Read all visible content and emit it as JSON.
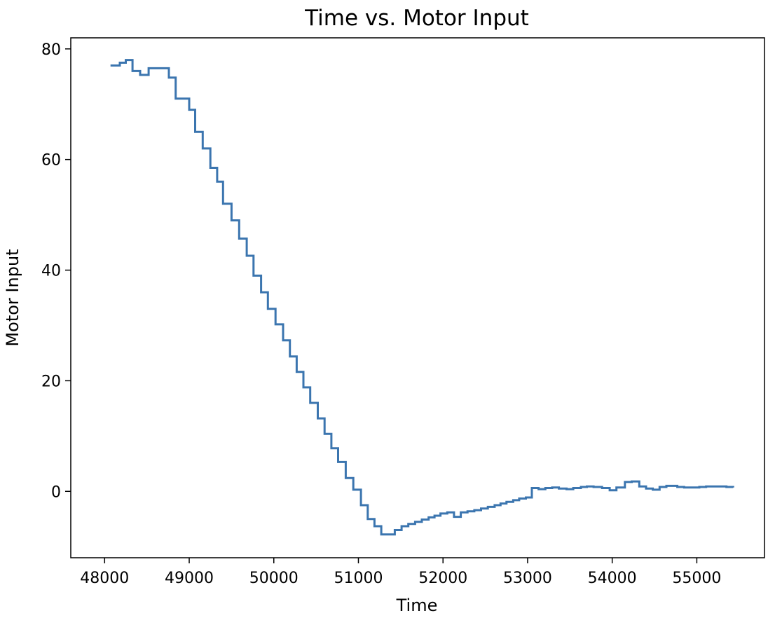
{
  "chart_data": {
    "type": "line",
    "title": "Time vs. Motor Input",
    "xlabel": "Time",
    "ylabel": "Motor Input",
    "xlim": [
      47600,
      55800
    ],
    "ylim": [
      -12,
      82
    ],
    "xticks": [
      48000,
      49000,
      50000,
      51000,
      52000,
      53000,
      54000,
      55000
    ],
    "yticks": [
      0,
      20,
      40,
      60,
      80
    ],
    "grid": false,
    "line_style": "step",
    "series": [
      {
        "color": "#3b75af",
        "x": [
          48070,
          48180,
          48250,
          48330,
          48420,
          48520,
          48630,
          48760,
          48840,
          49000,
          49070,
          49160,
          49250,
          49330,
          49400,
          49500,
          49590,
          49680,
          49760,
          49850,
          49930,
          50020,
          50110,
          50190,
          50270,
          50350,
          50430,
          50520,
          50600,
          50680,
          50760,
          50850,
          50940,
          51030,
          51110,
          51190,
          51270,
          51350,
          51430,
          51510,
          51590,
          51670,
          51750,
          51830,
          51900,
          51970,
          52050,
          52130,
          52210,
          52290,
          52370,
          52450,
          52530,
          52610,
          52680,
          52750,
          52830,
          52900,
          52980,
          53050,
          53130,
          53210,
          53290,
          53370,
          53460,
          53540,
          53630,
          53700,
          53780,
          53880,
          53970,
          54050,
          54150,
          54230,
          54320,
          54400,
          54480,
          54560,
          54640,
          54710,
          54770,
          54850,
          54940,
          55030,
          55110,
          55190,
          55270,
          55350,
          55430
        ],
        "y": [
          77.0,
          77.5,
          78.0,
          76.0,
          75.3,
          76.5,
          76.5,
          74.8,
          71.0,
          69.0,
          65.0,
          62.0,
          58.5,
          56.0,
          52.0,
          49.0,
          45.7,
          42.6,
          39.0,
          36.0,
          33.0,
          30.2,
          27.3,
          24.4,
          21.6,
          18.8,
          16.0,
          13.2,
          10.4,
          7.8,
          5.3,
          2.4,
          0.3,
          -2.5,
          -5.0,
          -6.3,
          -7.8,
          -7.8,
          -7.0,
          -6.3,
          -5.9,
          -5.5,
          -5.1,
          -4.7,
          -4.4,
          -4.0,
          -3.8,
          -4.6,
          -3.8,
          -3.6,
          -3.4,
          -3.1,
          -2.8,
          -2.5,
          -2.2,
          -1.9,
          -1.6,
          -1.3,
          -1.1,
          0.6,
          0.4,
          0.6,
          0.7,
          0.5,
          0.4,
          0.6,
          0.8,
          0.9,
          0.8,
          0.6,
          0.2,
          0.7,
          1.7,
          1.8,
          0.9,
          0.5,
          0.3,
          0.8,
          1.0,
          1.0,
          0.8,
          0.7,
          0.7,
          0.8,
          0.9,
          0.9,
          0.9,
          0.8,
          0.7
        ]
      }
    ]
  }
}
